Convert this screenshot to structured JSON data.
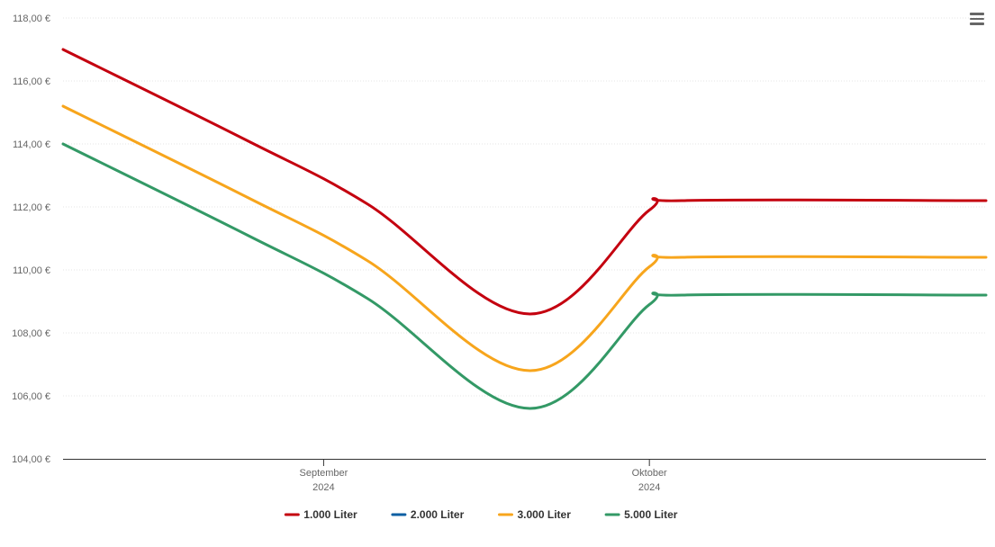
{
  "chart_data": {
    "type": "line",
    "title": "",
    "xlabel": "",
    "ylabel": "",
    "ylim": [
      104,
      118
    ],
    "y_ticks": [
      104,
      106,
      108,
      110,
      112,
      114,
      116,
      118
    ],
    "y_tick_labels": [
      "104,00 €",
      "106,00 €",
      "108,00 €",
      "110,00 €",
      "112,00 €",
      "114,00 €",
      "116,00 €",
      "118,00 €"
    ],
    "xlim": [
      "2024-08-08",
      "2024-11-01"
    ],
    "x_ticks": [
      {
        "date": "2024-09-01",
        "month": "September",
        "year": "2024"
      },
      {
        "date": "2024-10-01",
        "month": "Oktober",
        "year": "2024"
      }
    ],
    "x": [
      "2024-08-08",
      "2024-08-25",
      "2024-09-05",
      "2024-09-20",
      "2024-10-01",
      "2024-10-04",
      "2024-11-01"
    ],
    "series": [
      {
        "name": "1.000 Liter",
        "color": "#c4000f",
        "values": [
          117.0,
          114.1,
          112.1,
          108.6,
          111.9,
          112.2,
          112.2
        ]
      },
      {
        "name": "2.000 Liter",
        "color": "#0c5fa3",
        "values": [
          null,
          null,
          null,
          null,
          null,
          null,
          null
        ]
      },
      {
        "name": "3.000 Liter",
        "color": "#f7a51c",
        "values": [
          115.2,
          112.3,
          110.3,
          106.8,
          110.1,
          110.4,
          110.4
        ]
      },
      {
        "name": "5.000 Liter",
        "color": "#339966",
        "values": [
          114.0,
          111.1,
          109.1,
          105.6,
          108.9,
          109.2,
          109.2
        ]
      }
    ],
    "grid": true,
    "legend_position": "bottom-center"
  },
  "menu": {
    "icon": "hamburger-menu-icon"
  }
}
